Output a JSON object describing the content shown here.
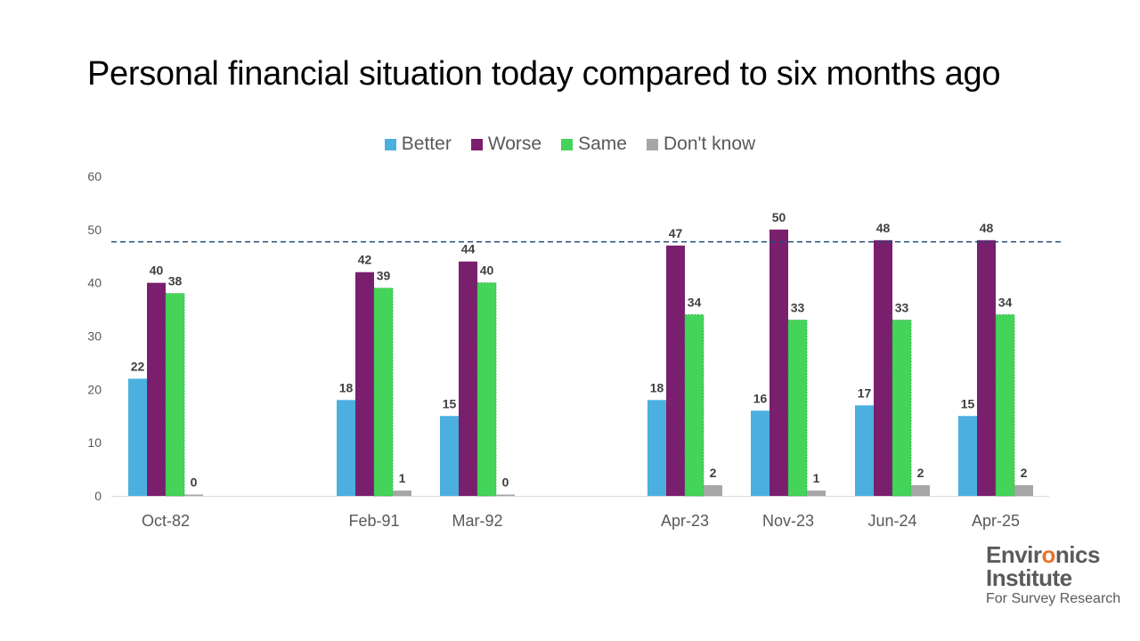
{
  "chart_data": {
    "type": "bar",
    "title": "Personal financial situation today compared to six months ago",
    "categories": [
      "Oct-82",
      "Feb-91",
      "Mar-92",
      "Apr-23",
      "Nov-23",
      "Jun-24",
      "Apr-25"
    ],
    "series": [
      {
        "name": "Better",
        "color": "#4bafe0",
        "values": [
          22,
          18,
          15,
          18,
          16,
          17,
          15
        ]
      },
      {
        "name": "Worse",
        "color": "#7a1f6e",
        "values": [
          40,
          42,
          44,
          47,
          50,
          48,
          48
        ]
      },
      {
        "name": "Same",
        "color": "#44d45a",
        "values": [
          38,
          39,
          40,
          34,
          33,
          33,
          34
        ]
      },
      {
        "name": "Don't know",
        "color": "#a6a6a6",
        "values": [
          0,
          1,
          0,
          2,
          1,
          2,
          2
        ]
      }
    ],
    "yticks": [
      0,
      10,
      20,
      30,
      40,
      50,
      60
    ],
    "ylim": [
      0,
      60
    ],
    "reference_line": 47.7,
    "reference_line_color": "#1f4e79",
    "legend_position": "top",
    "grid": false
  },
  "logo": {
    "line1_prefix": "Envir",
    "line1_accent": "o",
    "line1_suffix": "nics",
    "line2": "Institute",
    "line3": "For Survey Research"
  }
}
